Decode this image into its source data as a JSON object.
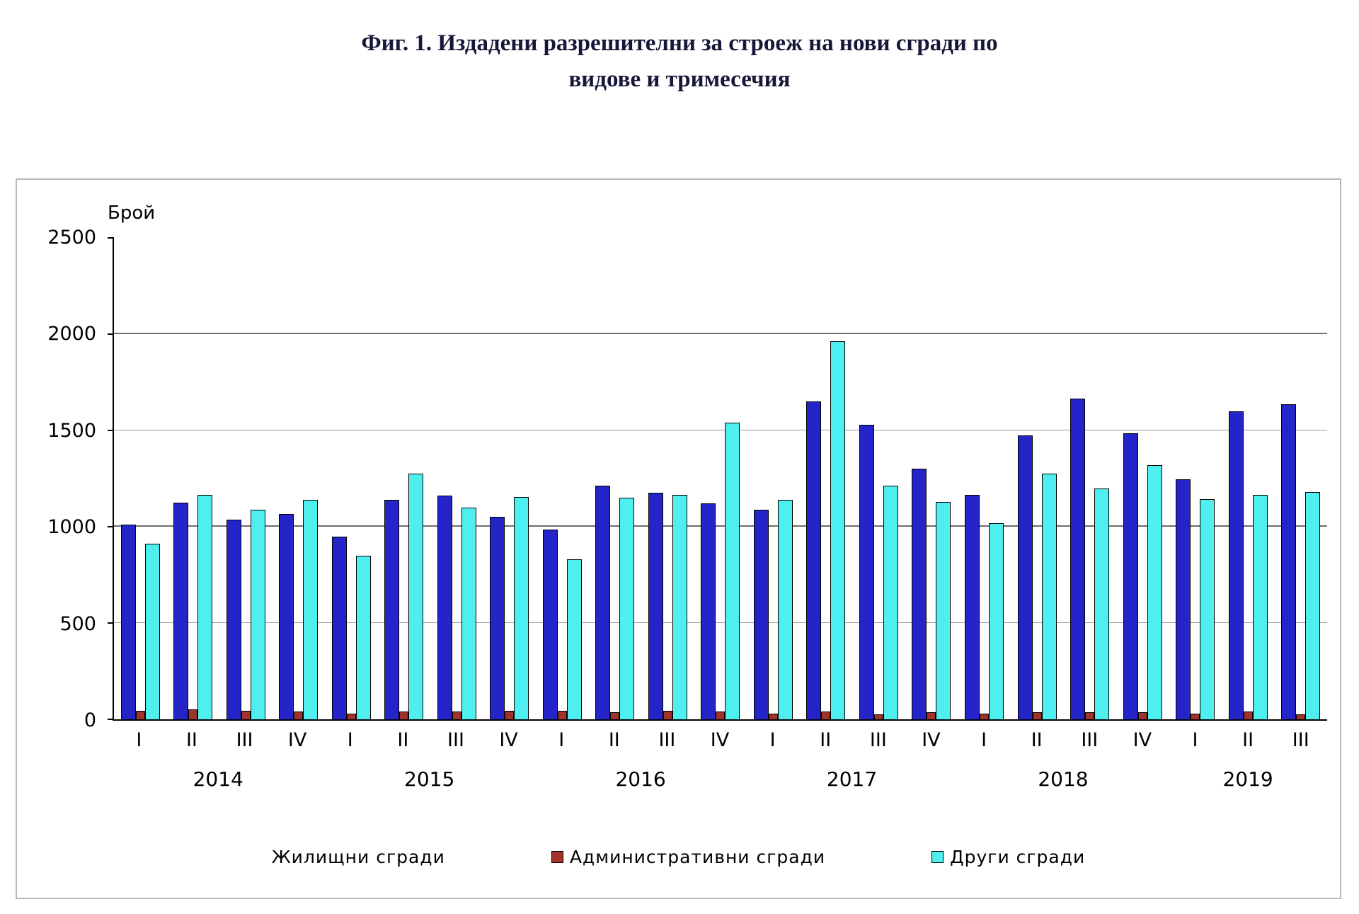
{
  "title": {
    "line1": "Фиг. 1. Издадени разрешителни за строеж на нови сгради по",
    "line2": "видове и тримесечия"
  },
  "chart_data": {
    "type": "bar",
    "title": "Издадени разрешителни за строеж на нови сгради по видове и тримесечия",
    "ylabel": "Брой",
    "xlabel": "",
    "ylim": [
      0,
      2500
    ],
    "yticks": [
      0,
      500,
      1000,
      1500,
      2000,
      2500
    ],
    "grid": "horizontal",
    "legend_position": "bottom",
    "years": [
      {
        "label": "2014",
        "quarters": [
          "I",
          "II",
          "III",
          "IV"
        ]
      },
      {
        "label": "2015",
        "quarters": [
          "I",
          "II",
          "III",
          "IV"
        ]
      },
      {
        "label": "2016",
        "quarters": [
          "I",
          "II",
          "III",
          "IV"
        ]
      },
      {
        "label": "2017",
        "quarters": [
          "I",
          "II",
          "III",
          "IV"
        ]
      },
      {
        "label": "2018",
        "quarters": [
          "I",
          "II",
          "III",
          "IV"
        ]
      },
      {
        "label": "2019",
        "quarters": [
          "I",
          "II",
          "III"
        ]
      }
    ],
    "categories": [
      "2014-I",
      "2014-II",
      "2014-III",
      "2014-IV",
      "2015-I",
      "2015-II",
      "2015-III",
      "2015-IV",
      "2016-I",
      "2016-II",
      "2016-III",
      "2016-IV",
      "2017-I",
      "2017-II",
      "2017-III",
      "2017-IV",
      "2018-I",
      "2018-II",
      "2018-III",
      "2018-IV",
      "2019-I",
      "2019-II",
      "2019-III"
    ],
    "series": [
      {
        "name": "Жилищни сгради",
        "color": "#2424c8",
        "legend_swatch_visible": false,
        "values": [
          1010,
          1125,
          1035,
          1065,
          950,
          1140,
          1160,
          1050,
          985,
          1215,
          1175,
          1120,
          1090,
          1650,
          1530,
          1300,
          1165,
          1475,
          1665,
          1485,
          1245,
          1600,
          1635
        ]
      },
      {
        "name": "Административни  сгради",
        "color": "#a2332b",
        "legend_swatch_visible": true,
        "values": [
          45,
          50,
          45,
          40,
          30,
          40,
          40,
          45,
          45,
          35,
          45,
          40,
          30,
          40,
          25,
          35,
          30,
          35,
          35,
          35,
          30,
          40,
          25
        ]
      },
      {
        "name": "Други сгради",
        "color": "#4fefef",
        "legend_swatch_visible": true,
        "values": [
          910,
          1165,
          1090,
          1140,
          850,
          1275,
          1100,
          1155,
          830,
          1150,
          1165,
          1540,
          1140,
          1965,
          1215,
          1130,
          1020,
          1275,
          1200,
          1320,
          1145,
          1165,
          1180
        ]
      }
    ]
  }
}
